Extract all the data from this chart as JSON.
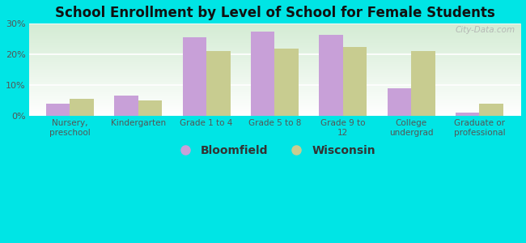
{
  "title": "School Enrollment by Level of School for Female Students",
  "categories": [
    "Nursery,\npreschool",
    "Kindergarten",
    "Grade 1 to 4",
    "Grade 5 to 8",
    "Grade 9 to\n12",
    "College\nundergrad",
    "Graduate or\nprofessional"
  ],
  "bloomfield": [
    4.0,
    6.5,
    25.5,
    27.5,
    26.5,
    9.0,
    1.0
  ],
  "wisconsin": [
    5.5,
    5.0,
    21.0,
    22.0,
    22.5,
    21.0,
    4.0
  ],
  "bloomfield_color": "#c8a0d8",
  "wisconsin_color": "#c8cc90",
  "background_color": "#00e5e5",
  "chart_bg_top": "#d4ecd4",
  "chart_bg_bottom": "#ffffff",
  "ylim": [
    0,
    30
  ],
  "yticks": [
    0,
    10,
    20,
    30
  ],
  "legend_bloomfield": "Bloomfield",
  "legend_wisconsin": "Wisconsin",
  "watermark": "City-Data.com",
  "bar_width": 0.35,
  "title_fontsize": 12,
  "tick_fontsize": 8,
  "legend_fontsize": 10
}
